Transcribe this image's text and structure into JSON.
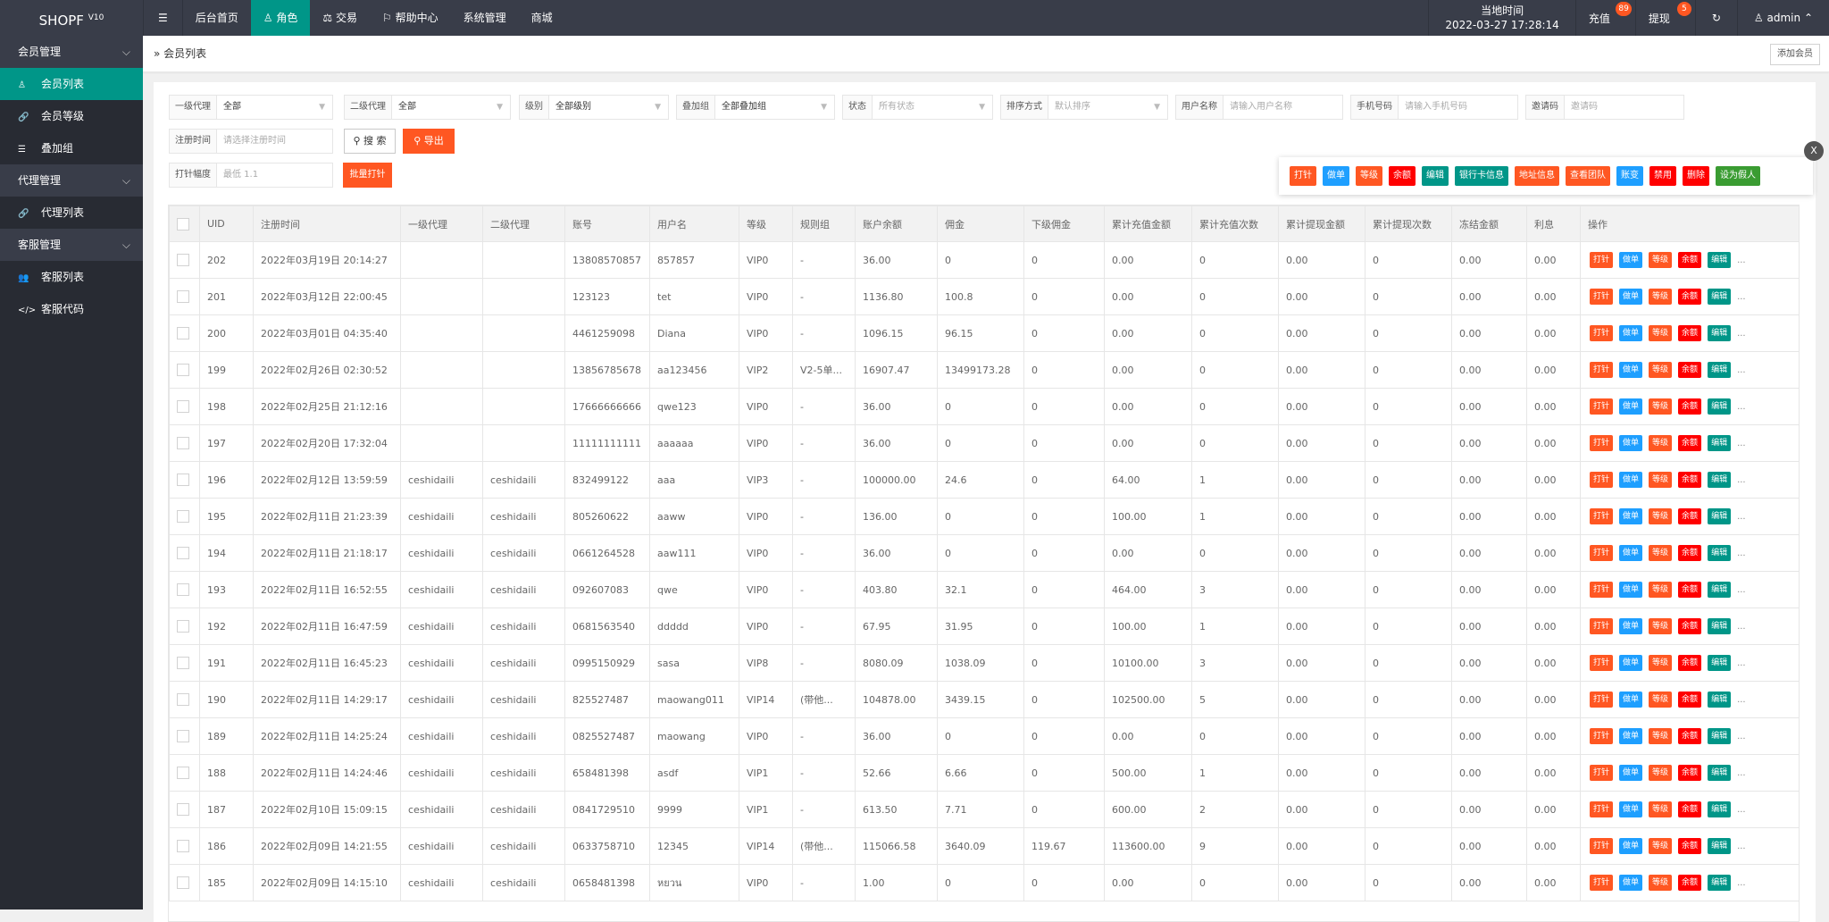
{
  "brand": {
    "name": "SHOPF",
    "version": "V10"
  },
  "nav": {
    "menu_icon": "menu-icon",
    "items": [
      {
        "label": "后台首页",
        "icon": ""
      },
      {
        "label": "角色",
        "icon": "user-icon",
        "active": true
      },
      {
        "label": "交易",
        "icon": "scale-icon"
      },
      {
        "label": "帮助中心",
        "icon": "flag-icon"
      },
      {
        "label": "系统管理",
        "icon": ""
      },
      {
        "label": "商城",
        "icon": ""
      }
    ]
  },
  "header_right": {
    "clock_label": "当地时间",
    "clock_value": "2022-03-27 17:28:14",
    "recharge": "充值",
    "recharge_badge": "89",
    "withdraw": "提现",
    "withdraw_badge": "5",
    "user": "admin"
  },
  "sidebar": [
    {
      "label": "会员管理",
      "children": [
        {
          "label": "会员列表",
          "icon": "user-icon",
          "active": true
        },
        {
          "label": "会员等级",
          "icon": "link-icon"
        },
        {
          "label": "叠加组",
          "icon": "list-icon"
        }
      ]
    },
    {
      "label": "代理管理",
      "children": [
        {
          "label": "代理列表",
          "icon": "link-icon"
        }
      ]
    },
    {
      "label": "客服管理",
      "children": [
        {
          "label": "客服列表",
          "icon": "users-icon"
        },
        {
          "label": "客服代码",
          "icon": "code-icon"
        }
      ]
    }
  ],
  "breadcrumb": "会员列表",
  "add_member": "添加会员",
  "filters": {
    "agent1": {
      "label": "一级代理",
      "value": "全部"
    },
    "agent2": {
      "label": "二级代理",
      "value": "全部"
    },
    "level": {
      "label": "级别",
      "value": "全部级别"
    },
    "group": {
      "label": "叠加组",
      "value": "全部叠加组"
    },
    "status": {
      "label": "状态",
      "placeholder": "所有状态"
    },
    "sort": {
      "label": "排序方式",
      "placeholder": "默认排序"
    },
    "username": {
      "label": "用户名称",
      "placeholder": "请输入用户名称"
    },
    "phone": {
      "label": "手机号码",
      "placeholder": "请输入手机号码"
    },
    "invite": {
      "label": "邀请码",
      "placeholder": "邀请码"
    },
    "regtime": {
      "label": "注册时间",
      "placeholder": "请选择注册时间"
    },
    "search": "搜 索",
    "export": "导出",
    "amp": {
      "label": "打针幅度",
      "placeholder": "最低 1.1"
    },
    "batch": "批量打针"
  },
  "table": {
    "headers": [
      "UID",
      "注册时间",
      "一级代理",
      "二级代理",
      "账号",
      "用户名",
      "等级",
      "规则组",
      "账户余额",
      "佣金",
      "下级佣金",
      "累计充值金额",
      "累计充值次数",
      "累计提现金额",
      "累计提现次数",
      "冻结金额",
      "利息"
    ],
    "op_header": "操作",
    "rows": [
      [
        "202",
        "2022年03月19日 20:14:27",
        "",
        "",
        "13808570857",
        "857857",
        "VIP0",
        "-",
        "36.00",
        "0",
        "0",
        "0.00",
        "0",
        "0.00",
        "0",
        "0.00",
        "0.00"
      ],
      [
        "201",
        "2022年03月12日 22:00:45",
        "",
        "",
        "123123",
        "tet",
        "VIP0",
        "-",
        "1136.80",
        "100.8",
        "0",
        "0.00",
        "0",
        "0.00",
        "0",
        "0.00",
        "0.00"
      ],
      [
        "200",
        "2022年03月01日 04:35:40",
        "",
        "",
        "4461259098",
        "Diana",
        "VIP0",
        "-",
        "1096.15",
        "96.15",
        "0",
        "0.00",
        "0",
        "0.00",
        "0",
        "0.00",
        "0.00"
      ],
      [
        "199",
        "2022年02月26日 02:30:52",
        "",
        "",
        "13856785678",
        "aa123456",
        "VIP2",
        "V2-5单...",
        "16907.47",
        "13499173.28",
        "0",
        "0.00",
        "0",
        "0.00",
        "0",
        "0.00",
        "0.00"
      ],
      [
        "198",
        "2022年02月25日 21:12:16",
        "",
        "",
        "17666666666",
        "qwe123",
        "VIP0",
        "-",
        "36.00",
        "0",
        "0",
        "0.00",
        "0",
        "0.00",
        "0",
        "0.00",
        "0.00"
      ],
      [
        "197",
        "2022年02月20日 17:32:04",
        "",
        "",
        "11111111111",
        "aaaaaa",
        "VIP0",
        "-",
        "36.00",
        "0",
        "0",
        "0.00",
        "0",
        "0.00",
        "0",
        "0.00",
        "0.00"
      ],
      [
        "196",
        "2022年02月12日 13:59:59",
        "ceshidaili",
        "ceshidaili",
        "832499122",
        "aaa",
        "VIP3",
        "-",
        "100000.00",
        "24.6",
        "0",
        "64.00",
        "1",
        "0.00",
        "0",
        "0.00",
        "0.00"
      ],
      [
        "195",
        "2022年02月11日 21:23:39",
        "ceshidaili",
        "ceshidaili",
        "805260622",
        "aaww",
        "VIP0",
        "-",
        "136.00",
        "0",
        "0",
        "100.00",
        "1",
        "0.00",
        "0",
        "0.00",
        "0.00"
      ],
      [
        "194",
        "2022年02月11日 21:18:17",
        "ceshidaili",
        "ceshidaili",
        "0661264528",
        "aaw111",
        "VIP0",
        "-",
        "36.00",
        "0",
        "0",
        "0.00",
        "0",
        "0.00",
        "0",
        "0.00",
        "0.00"
      ],
      [
        "193",
        "2022年02月11日 16:52:55",
        "ceshidaili",
        "ceshidaili",
        "092607083",
        "qwe",
        "VIP0",
        "-",
        "403.80",
        "32.1",
        "0",
        "464.00",
        "3",
        "0.00",
        "0",
        "0.00",
        "0.00"
      ],
      [
        "192",
        "2022年02月11日 16:47:59",
        "ceshidaili",
        "ceshidaili",
        "0681563540",
        "ddddd",
        "VIP0",
        "-",
        "67.95",
        "31.95",
        "0",
        "100.00",
        "1",
        "0.00",
        "0",
        "0.00",
        "0.00"
      ],
      [
        "191",
        "2022年02月11日 16:45:23",
        "ceshidaili",
        "ceshidaili",
        "0995150929",
        "sasa",
        "VIP8",
        "-",
        "8080.09",
        "1038.09",
        "0",
        "10100.00",
        "3",
        "0.00",
        "0",
        "0.00",
        "0.00"
      ],
      [
        "190",
        "2022年02月11日 14:29:17",
        "ceshidaili",
        "ceshidaili",
        "825527487",
        "maowang011",
        "VIP14",
        "(带他...",
        "104878.00",
        "3439.15",
        "0",
        "102500.00",
        "5",
        "0.00",
        "0",
        "0.00",
        "0.00"
      ],
      [
        "189",
        "2022年02月11日 14:25:24",
        "ceshidaili",
        "ceshidaili",
        "0825527487",
        "maowang",
        "VIP0",
        "-",
        "36.00",
        "0",
        "0",
        "0.00",
        "0",
        "0.00",
        "0",
        "0.00",
        "0.00"
      ],
      [
        "188",
        "2022年02月11日 14:24:46",
        "ceshidaili",
        "ceshidaili",
        "658481398",
        "asdf",
        "VIP1",
        "-",
        "52.66",
        "6.66",
        "0",
        "500.00",
        "1",
        "0.00",
        "0",
        "0.00",
        "0.00"
      ],
      [
        "187",
        "2022年02月10日 15:09:15",
        "ceshidaili",
        "ceshidaili",
        "0841729510",
        "9999",
        "VIP1",
        "-",
        "613.50",
        "7.71",
        "0",
        "600.00",
        "2",
        "0.00",
        "0",
        "0.00",
        "0.00"
      ],
      [
        "186",
        "2022年02月09日 14:21:55",
        "ceshidaili",
        "ceshidaili",
        "0633758710",
        "12345",
        "VIP14",
        "(带他...",
        "115066.58",
        "3640.09",
        "119.67",
        "113600.00",
        "9",
        "0.00",
        "0",
        "0.00",
        "0.00"
      ],
      [
        "185",
        "2022年02月09日 14:15:10",
        "ceshidaili",
        "ceshidaili",
        "0658481398",
        "หยวน",
        "VIP0",
        "-",
        "1.00",
        "0",
        "0",
        "0.00",
        "0",
        "0.00",
        "0",
        "0.00",
        "0.00"
      ]
    ],
    "row_actions": [
      {
        "label": "打针",
        "color": "orange"
      },
      {
        "label": "做单",
        "color": "blue"
      },
      {
        "label": "等级",
        "color": "orange"
      },
      {
        "label": "余额",
        "color": "red"
      },
      {
        "label": "编辑",
        "color": "teal"
      }
    ],
    "more": "..."
  },
  "popup": {
    "close": "X",
    "actions": [
      {
        "label": "打针",
        "color": "orange"
      },
      {
        "label": "做单",
        "color": "blue"
      },
      {
        "label": "等级",
        "color": "orange"
      },
      {
        "label": "余额",
        "color": "red"
      },
      {
        "label": "编辑",
        "color": "teal"
      },
      {
        "label": "银行卡信息",
        "color": "teal"
      },
      {
        "label": "地址信息",
        "color": "orange"
      },
      {
        "label": "查看团队",
        "color": "orange"
      },
      {
        "label": "账变",
        "color": "blue"
      },
      {
        "label": "禁用",
        "color": "red"
      },
      {
        "label": "删除",
        "color": "red"
      },
      {
        "label": "设为假人",
        "color": "green"
      }
    ]
  },
  "colors": {
    "header": "#393d49",
    "accent": "#009688",
    "orange": "#ff5722",
    "blue": "#1e9fff",
    "red": "#ff0000",
    "green": "#3a9c32"
  }
}
